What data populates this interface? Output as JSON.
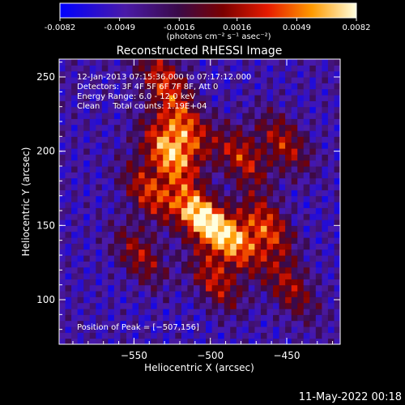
{
  "chart_data": {
    "type": "heatmap",
    "title": "Reconstructed RHESSI Image",
    "colorbar": {
      "colormap": "blue-purple-red-yellow-white",
      "range": [
        -0.0082,
        0.0082
      ],
      "tick_labels": [
        "-0.0082",
        "-0.0049",
        "-0.0016",
        "0.0016",
        "0.0049",
        "0.0082"
      ],
      "unit_label": "(photons cm⁻² s⁻¹ asec⁻²)"
    },
    "xlabel": "Heliocentric X (arcsec)",
    "ylabel": "Heliocentric Y (arcsec)",
    "xlim": [
      -599,
      -415
    ],
    "ylim": [
      70,
      262
    ],
    "xticks": [
      -550,
      -500,
      -450
    ],
    "xtick_labels": [
      "−550",
      "−500",
      "−450"
    ],
    "yticks": [
      100,
      150,
      200,
      250
    ],
    "ytick_labels": [
      "100",
      "150",
      "200",
      "250"
    ],
    "annotations": [
      "12-Jan-2013 07:15:36.000 to 07:17:12.000",
      "Detectors: 3F 4F 5F 6F 7F 8F, Att 0",
      "Energy Range: 6.0 - 12.0 keV",
      "Clean     Total counts: 1.19E+04"
    ],
    "peak_label": "Position of Peak = [−507,156]",
    "peak_position": [
      -507,
      156
    ],
    "sources": [
      {
        "x": -507,
        "y": 156,
        "value": 0.0082
      },
      {
        "x": -527,
        "y": 198,
        "value": 0.0072
      },
      {
        "x": -484,
        "y": 140,
        "value": 0.0058
      },
      {
        "x": -463,
        "y": 150,
        "value": 0.0046
      },
      {
        "x": -516,
        "y": 215,
        "value": 0.0044
      },
      {
        "x": -540,
        "y": 172,
        "value": 0.0041
      },
      {
        "x": -479,
        "y": 196,
        "value": 0.0036
      },
      {
        "x": -497,
        "y": 113,
        "value": 0.0034
      },
      {
        "x": -452,
        "y": 206,
        "value": 0.0029
      },
      {
        "x": -530,
        "y": 248,
        "value": 0.0032
      },
      {
        "x": -546,
        "y": 130,
        "value": 0.0024
      },
      {
        "x": -448,
        "y": 108,
        "value": 0.002
      }
    ]
  },
  "footer": {
    "timestamp": "11-May-2022 00:18"
  }
}
